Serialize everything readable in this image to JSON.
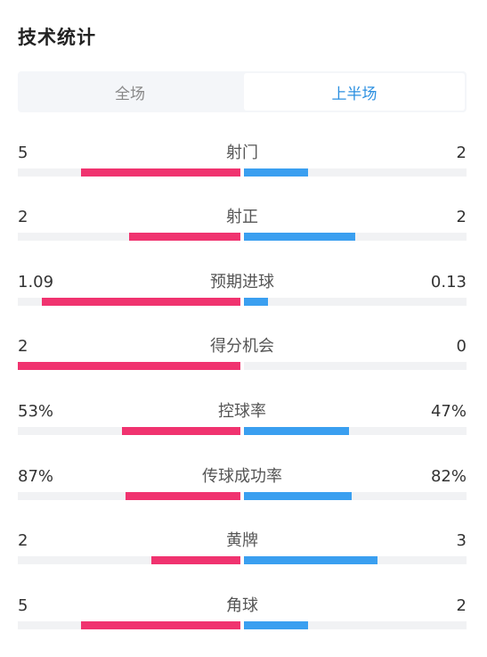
{
  "page": {
    "title": "技术统计"
  },
  "tabs": [
    {
      "label": "全场",
      "active": false
    },
    {
      "label": "上半场",
      "active": true
    }
  ],
  "colors": {
    "home": "#f0336f",
    "away": "#3a9ff0",
    "accent": "#2b8fe0"
  },
  "stats": [
    {
      "name": "射门",
      "left": "5",
      "right": "2",
      "left_share": 0.714,
      "right_share": 0.286
    },
    {
      "name": "射正",
      "left": "2",
      "right": "2",
      "left_share": 0.5,
      "right_share": 0.5
    },
    {
      "name": "预期进球",
      "left": "1.09",
      "right": "0.13",
      "left_share": 0.893,
      "right_share": 0.107
    },
    {
      "name": "得分机会",
      "left": "2",
      "right": "0",
      "left_share": 1.0,
      "right_share": 0.0
    },
    {
      "name": "控球率",
      "left": "53%",
      "right": "47%",
      "left_share": 0.53,
      "right_share": 0.47
    },
    {
      "name": "传球成功率",
      "left": "87%",
      "right": "82%",
      "left_share": 0.515,
      "right_share": 0.485
    },
    {
      "name": "黄牌",
      "left": "2",
      "right": "3",
      "left_share": 0.4,
      "right_share": 0.6
    },
    {
      "name": "角球",
      "left": "5",
      "right": "2",
      "left_share": 0.714,
      "right_share": 0.286
    }
  ]
}
